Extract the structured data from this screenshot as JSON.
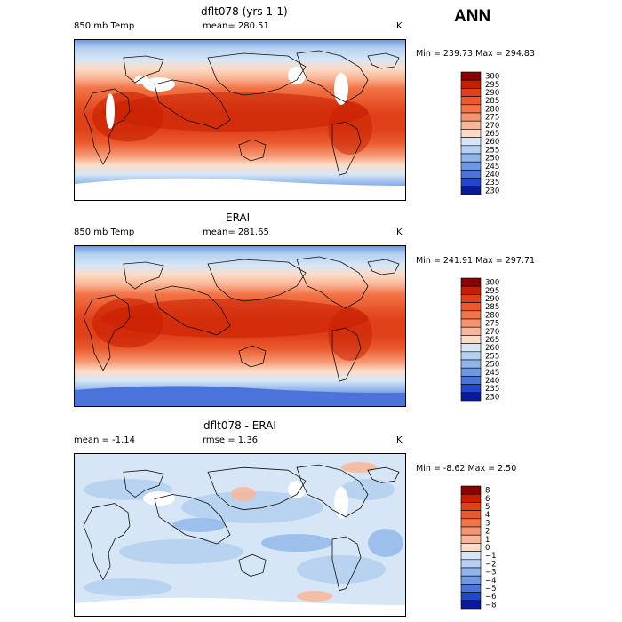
{
  "season": "ANN",
  "panels": [
    {
      "title": "dflt078 (yrs 1-1)",
      "left_label": "850 mb Temp",
      "center_label": "mean= 280.51",
      "units": "K",
      "min_max": "Min = 239.73  Max = 294.83"
    },
    {
      "title": "ERAI",
      "left_label": "850 mb Temp",
      "center_label": "mean= 281.65",
      "units": "K",
      "min_max": "Min = 241.91  Max = 297.71"
    },
    {
      "title": "dflt078 - ERAI",
      "left_label": "mean =   -1.14",
      "center_label": "rmse =    1.36",
      "units": "K",
      "min_max": "Min =  -8.62  Max =    2.50"
    }
  ],
  "chart_data": [
    {
      "type": "heatmap",
      "title": "dflt078 (yrs 1-1)",
      "variable": "850 mb Temp",
      "units": "K",
      "mean": 280.51,
      "min": 239.73,
      "max": 294.83,
      "colorbar_levels": [
        300,
        295,
        290,
        285,
        280,
        275,
        270,
        265,
        260,
        255,
        250,
        245,
        240,
        235,
        230
      ],
      "colorbar_labels": [
        "300",
        "295",
        "290",
        "285",
        "280",
        "275",
        "270",
        "265",
        "260",
        "255",
        "250",
        "245",
        "240",
        "235",
        "230"
      ],
      "colors": [
        "#8a0000",
        "#c81e00",
        "#e0401a",
        "#ea5a2e",
        "#f27548",
        "#f69470",
        "#f9b597",
        "#fcdcc6",
        "#d6e6f6",
        "#b5d0f0",
        "#8fb5ea",
        "#6f98e2",
        "#4a74da",
        "#2148cc",
        "#0c1a9a"
      ]
    },
    {
      "type": "heatmap",
      "title": "ERAI",
      "variable": "850 mb Temp",
      "units": "K",
      "mean": 281.65,
      "min": 241.91,
      "max": 297.71,
      "colorbar_levels": [
        300,
        295,
        290,
        285,
        280,
        275,
        270,
        265,
        260,
        255,
        250,
        245,
        240,
        235,
        230
      ],
      "colorbar_labels": [
        "300",
        "295",
        "290",
        "285",
        "280",
        "275",
        "270",
        "265",
        "260",
        "255",
        "250",
        "245",
        "240",
        "235",
        "230"
      ],
      "colors": [
        "#8a0000",
        "#c81e00",
        "#e0401a",
        "#ea5a2e",
        "#f27548",
        "#f69470",
        "#f9b597",
        "#fcdcc6",
        "#d6e6f6",
        "#b5d0f0",
        "#8fb5ea",
        "#6f98e2",
        "#4a74da",
        "#2148cc",
        "#0c1a9a"
      ]
    },
    {
      "type": "heatmap",
      "title": "dflt078 - ERAI",
      "units": "K",
      "mean": -1.14,
      "rmse": 1.36,
      "min": -8.62,
      "max": 2.5,
      "colorbar_levels": [
        8,
        6,
        5,
        4,
        3,
        2,
        1,
        0,
        -1,
        -2,
        -3,
        -4,
        -5,
        -6,
        -8
      ],
      "colorbar_labels": [
        "8",
        "6",
        "5",
        "4",
        "3",
        "2",
        "1",
        "0",
        "−1",
        "−2",
        "−3",
        "−4",
        "−5",
        "−6",
        "−8"
      ],
      "colors": [
        "#8a0000",
        "#c81e00",
        "#e0401a",
        "#ea5a2e",
        "#f27548",
        "#f69470",
        "#f9b597",
        "#fcdcc6",
        "#d6e6f6",
        "#b5d0f0",
        "#8fb5ea",
        "#6f98e2",
        "#4a74da",
        "#2148cc",
        "#0c1a9a"
      ]
    }
  ]
}
